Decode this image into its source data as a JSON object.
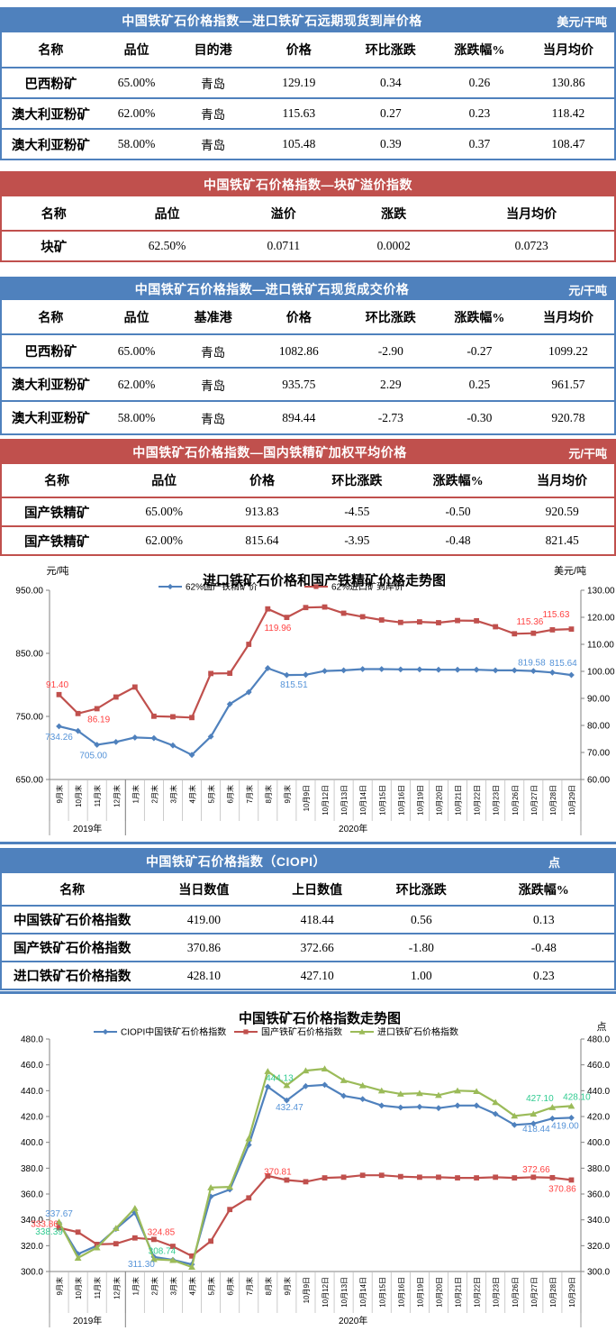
{
  "colors": {
    "accent_blue": "#4F81BD",
    "accent_red": "#C0504D",
    "series_green": "#9BBB59"
  },
  "tables": [
    {
      "title": "中国铁矿石价格指数—进口铁矿石远期现货到岸价格",
      "unit": "美元/干吨",
      "theme": "blue",
      "headers": [
        "名称",
        "品位",
        "目的港",
        "价格",
        "环比涨跌",
        "涨跌幅%",
        "当月均价"
      ],
      "rows": [
        [
          "巴西粉矿",
          "65.00%",
          "青岛",
          "129.19",
          "0.34",
          "0.26",
          "130.86"
        ],
        [
          "澳大利亚粉矿",
          "62.00%",
          "青岛",
          "115.63",
          "0.27",
          "0.23",
          "118.42"
        ],
        [
          "澳大利亚粉矿",
          "58.00%",
          "青岛",
          "105.48",
          "0.39",
          "0.37",
          "108.47"
        ]
      ]
    },
    {
      "title": "中国铁矿石价格指数—块矿溢价指数",
      "unit": "",
      "theme": "red",
      "headers": [
        "名称",
        "品位",
        "溢价",
        "涨跌",
        "当月均价"
      ],
      "rows": [
        [
          "块矿",
          "62.50%",
          "0.0711",
          "0.0002",
          "0.0723"
        ]
      ]
    },
    {
      "title": "中国铁矿石价格指数—进口铁矿石现货成交价格",
      "unit": "元/干吨",
      "theme": "blue",
      "headers": [
        "名称",
        "品位",
        "基准港",
        "价格",
        "环比涨跌",
        "涨跌幅%",
        "当月均价"
      ],
      "rows": [
        [
          "巴西粉矿",
          "65.00%",
          "青岛",
          "1082.86",
          "-2.90",
          "-0.27",
          "1099.22"
        ],
        [
          "澳大利亚粉矿",
          "62.00%",
          "青岛",
          "935.75",
          "2.29",
          "0.25",
          "961.57"
        ],
        [
          "澳大利亚粉矿",
          "58.00%",
          "青岛",
          "894.44",
          "-2.73",
          "-0.30",
          "920.78"
        ]
      ]
    },
    {
      "title": "中国铁矿石价格指数—国内铁精矿加权平均价格",
      "unit": "元/干吨",
      "theme": "red",
      "headers": [
        "名称",
        "品位",
        "价格",
        "环比涨跌",
        "涨跌幅%",
        "当月均价"
      ],
      "rows": [
        [
          "国产铁精矿",
          "65.00%",
          "913.83",
          "-4.55",
          "-0.50",
          "920.59"
        ],
        [
          "国产铁精矿",
          "62.00%",
          "815.64",
          "-3.95",
          "-0.48",
          "821.45"
        ]
      ]
    },
    {
      "title": "中国铁矿石价格指数（CIOPI）",
      "unit": "点",
      "theme": "blue",
      "headers": [
        "名称",
        "当日数值",
        "上日数值",
        "环比涨跌",
        "涨跌幅%"
      ],
      "rows": [
        [
          "中国铁矿石价格指数",
          "419.00",
          "418.44",
          "0.56",
          "0.13"
        ],
        [
          "国产铁矿石价格指数",
          "370.86",
          "372.66",
          "-1.80",
          "-0.48"
        ],
        [
          "进口铁矿石价格指数",
          "428.10",
          "427.10",
          "1.00",
          "0.23"
        ]
      ]
    }
  ],
  "chart_data": [
    {
      "type": "line",
      "title": "进口铁矿石价格和国产铁精矿价格走势图",
      "left_axis": {
        "label": "元/吨",
        "min": 650,
        "max": 950,
        "ticks": [
          "950.00",
          "850.00",
          "750.00",
          "650.00"
        ]
      },
      "right_axis": {
        "label": "美元/吨",
        "min": 60,
        "max": 130,
        "ticks": [
          "130.00",
          "120.00",
          "110.00",
          "100.00",
          "90.00",
          "80.00",
          "70.00",
          "60.00"
        ]
      },
      "categories": [
        "9月末",
        "10月末",
        "11月末",
        "12月末",
        "1月末",
        "2月末",
        "3月末",
        "4月末",
        "5月末",
        "6月末",
        "7月末",
        "8月末",
        "9月末",
        "10月9日",
        "10月12日",
        "10月13日",
        "10月14日",
        "10月15日",
        "10月16日",
        "10月19日",
        "10月20日",
        "10月21日",
        "10月22日",
        "10月23日",
        "10月26日",
        "10月27日",
        "10月28日",
        "10月29日"
      ],
      "year_groups": [
        {
          "label": "2019年",
          "from": 0,
          "to": 3
        },
        {
          "label": "2020年",
          "from": 4,
          "to": 27
        }
      ],
      "legend_position": "top",
      "grid": false,
      "series": [
        {
          "name": "62%国产铁精矿价",
          "axis": "left",
          "color": "#4F81BD",
          "label_color": "#5593D8",
          "marker": "diamond",
          "values": [
            734.26,
            727,
            705.0,
            709.5,
            716.5,
            715.5,
            704,
            689,
            718,
            769.5,
            788.5,
            826.5,
            815.51,
            816,
            822,
            823,
            825,
            825,
            824.5,
            824.5,
            824,
            824,
            824,
            823,
            823,
            822,
            819.58,
            815.64
          ],
          "point_labels": [
            {
              "i": 0,
              "t": "734.26",
              "dx": 0,
              "dy": 15
            },
            {
              "i": 2,
              "t": "705.00",
              "dx": -4,
              "dy": 15
            },
            {
              "i": 12,
              "t": "815.51",
              "dx": 8,
              "dy": 14
            },
            {
              "i": 26,
              "t": "819.58",
              "dx": -23,
              "dy": -8
            },
            {
              "i": 27,
              "t": "815.64",
              "dx": -9,
              "dy": -10
            }
          ]
        },
        {
          "name": "62%进口矿到岸价",
          "axis": "right",
          "color": "#C0504D",
          "label_color": "#FF4242",
          "marker": "square",
          "values": [
            91.4,
            84.4,
            86.19,
            90.5,
            94.2,
            83.4,
            83.2,
            82.9,
            99.2,
            99.3,
            110,
            123.1,
            119.96,
            123.6,
            123.8,
            121.5,
            120.2,
            119,
            118.1,
            118.3,
            118,
            118.8,
            118.7,
            116.5,
            113.9,
            114.1,
            115.36,
            115.63
          ],
          "point_labels": [
            {
              "i": 0,
              "t": "91.40",
              "dx": -2,
              "dy": -8
            },
            {
              "i": 2,
              "t": "86.19",
              "dx": 2,
              "dy": 15
            },
            {
              "i": 12,
              "t": "119.96",
              "dx": -10,
              "dy": 15
            },
            {
              "i": 26,
              "t": "115.36",
              "dx": -25,
              "dy": -6
            },
            {
              "i": 27,
              "t": "115.63",
              "dx": -17,
              "dy": -13
            }
          ]
        }
      ]
    },
    {
      "type": "line",
      "title": "中国铁矿石价格指数走势图",
      "left_axis": {
        "label": "",
        "min": 300,
        "max": 480,
        "ticks": [
          "480.0",
          "460.0",
          "440.0",
          "420.0",
          "400.0",
          "380.0",
          "360.0",
          "340.0",
          "320.0",
          "300.0"
        ]
      },
      "right_axis": {
        "label": "点",
        "min": 300,
        "max": 480,
        "ticks": [
          "480.0",
          "460.0",
          "440.0",
          "420.0",
          "400.0",
          "380.0",
          "360.0",
          "340.0",
          "320.0",
          "300.0"
        ]
      },
      "categories": [
        "9月末",
        "10月末",
        "11月末",
        "12月末",
        "1月末",
        "2月末",
        "3月末",
        "4月末",
        "5月末",
        "6月末",
        "7月末",
        "8月末",
        "9月末",
        "10月9日",
        "10月12日",
        "10月13日",
        "10月14日",
        "10月15日",
        "10月16日",
        "10月19日",
        "10月20日",
        "10月21日",
        "10月22日",
        "10月23日",
        "10月26日",
        "10月27日",
        "10月28日",
        "10月29日"
      ],
      "year_groups": [
        {
          "label": "2019年",
          "from": 0,
          "to": 3
        },
        {
          "label": "2020年",
          "from": 4,
          "to": 27
        }
      ],
      "legend_position": "top",
      "grid": false,
      "series": [
        {
          "name": "CIOPI中国铁矿石价格指数",
          "axis": "left",
          "color": "#4F81BD",
          "label_color": "#5593D8",
          "marker": "diamond",
          "values": [
            337.67,
            313.5,
            320,
            333,
            345.5,
            311.3,
            309,
            305.5,
            358,
            363.5,
            398,
            443,
            432.47,
            443.5,
            444.5,
            436,
            433.5,
            428.5,
            427,
            427.5,
            426.5,
            428.5,
            428.5,
            422,
            413.5,
            414.5,
            418.44,
            419.0
          ],
          "point_labels": [
            {
              "i": 0,
              "t": "337.67",
              "dx": 0,
              "dy": -7
            },
            {
              "i": 5,
              "t": "311.30",
              "dx": -14,
              "dy": 11
            },
            {
              "i": 12,
              "t": "432.47",
              "dx": 3,
              "dy": 11
            },
            {
              "i": 26,
              "t": "418.44",
              "dx": -18,
              "dy": 15
            },
            {
              "i": 27,
              "t": "419.00",
              "dx": -7,
              "dy": 12
            }
          ]
        },
        {
          "name": "国产铁矿石价格指数",
          "axis": "left",
          "color": "#C0504D",
          "label_color": "#FF4242",
          "marker": "square",
          "values": [
            333.86,
            330.5,
            321,
            321.5,
            326,
            324.85,
            319.5,
            312,
            323.5,
            348,
            357,
            374,
            370.81,
            369.5,
            372.5,
            373,
            374.5,
            374.5,
            373.5,
            373,
            373,
            372.5,
            372.5,
            373,
            372.5,
            373,
            372.66,
            370.86
          ],
          "point_labels": [
            {
              "i": 0,
              "t": "333.86",
              "dx": -16,
              "dy": -1
            },
            {
              "i": 5,
              "t": "324.85",
              "dx": 8,
              "dy": -5
            },
            {
              "i": 12,
              "t": "370.81",
              "dx": -10,
              "dy": -6
            },
            {
              "i": 26,
              "t": "372.66",
              "dx": -18,
              "dy": -6
            },
            {
              "i": 27,
              "t": "370.86",
              "dx": -10,
              "dy": 13
            }
          ]
        },
        {
          "name": "进口铁矿石价格指数",
          "axis": "left",
          "color": "#9BBB59",
          "label_color": "#2FCB90",
          "marker": "triangle",
          "values": [
            338.39,
            310.5,
            318.5,
            333.5,
            349,
            309.5,
            308.74,
            303.5,
            365,
            365.5,
            403,
            455,
            444.13,
            455.5,
            457,
            448,
            444,
            440,
            437.5,
            438,
            436.5,
            440,
            439.5,
            431,
            420.5,
            422,
            427.1,
            428.1
          ],
          "point_labels": [
            {
              "i": 0,
              "t": "338.39",
              "dx": -11,
              "dy": 14
            },
            {
              "i": 6,
              "t": "308.74",
              "dx": -12,
              "dy": -7
            },
            {
              "i": 12,
              "t": "444.13",
              "dx": -8,
              "dy": -5
            },
            {
              "i": 26,
              "t": "427.10",
              "dx": -14,
              "dy": -7
            },
            {
              "i": 27,
              "t": "428.10",
              "dx": 6,
              "dy": -7
            }
          ]
        }
      ]
    }
  ]
}
